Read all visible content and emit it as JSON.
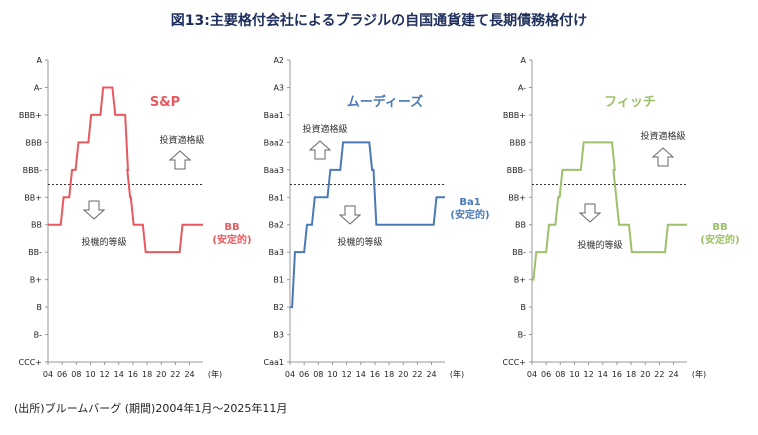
{
  "title": "図13:主要格付会社によるブラジルの自国通貨建て長期債務格付け",
  "source": "(出所)ブルームバーグ (期間)2004年1月～2025年11月",
  "x_unit": "(年)",
  "chart_data": [
    {
      "type": "line",
      "agency": "S&P",
      "color": "#e8595f",
      "y_categories": [
        "CCC+",
        "B-",
        "B",
        "B+",
        "BB-",
        "BB",
        "BB+",
        "BBB-",
        "BBB",
        "BBB+",
        "A-",
        "A"
      ],
      "x_ticks": [
        "04",
        "06",
        "08",
        "10",
        "12",
        "14",
        "16",
        "18",
        "20",
        "22",
        "24"
      ],
      "xlim": [
        2004,
        2025.9
      ],
      "investment_grade_threshold": "BBB-",
      "above_label": "投資適格級",
      "below_label": "投機的等級",
      "current_label": "BB",
      "current_sub": "(安定的)",
      "steps": [
        [
          2004,
          "BB"
        ],
        [
          2006.2,
          "BB+"
        ],
        [
          2007.4,
          "BBB-"
        ],
        [
          2008.3,
          "BBB"
        ],
        [
          2010.1,
          "BBB+"
        ],
        [
          2011.8,
          "A-"
        ],
        [
          2013.5,
          "BBB+"
        ],
        [
          2015.3,
          "BBB-"
        ],
        [
          2015.6,
          "BB+"
        ],
        [
          2016.1,
          "BB"
        ],
        [
          2017.8,
          "BB-"
        ],
        [
          2023.0,
          "BB"
        ],
        [
          2025.9,
          "BB"
        ]
      ]
    },
    {
      "type": "line",
      "agency": "ムーディーズ",
      "color": "#4a7ab5",
      "y_categories": [
        "Caa1",
        "B3",
        "B2",
        "B1",
        "Ba3",
        "Ba2",
        "Ba1",
        "Baa3",
        "Baa2",
        "Baa1",
        "A3",
        "A2"
      ],
      "x_ticks": [
        "04",
        "06",
        "08",
        "10",
        "12",
        "14",
        "16",
        "18",
        "20",
        "22",
        "24"
      ],
      "xlim": [
        2004,
        2025.9
      ],
      "investment_grade_threshold": "Baa3",
      "above_label": "投資適格級",
      "below_label": "投機的等級",
      "current_label": "Ba1",
      "current_sub": "(安定的)",
      "steps": [
        [
          2004,
          "B2"
        ],
        [
          2004.7,
          "Ba3"
        ],
        [
          2006.4,
          "Ba2"
        ],
        [
          2007.5,
          "Ba1"
        ],
        [
          2009.7,
          "Baa3"
        ],
        [
          2011.5,
          "Baa2"
        ],
        [
          2015.6,
          "Baa3"
        ],
        [
          2016.2,
          "Ba2"
        ],
        [
          2024.7,
          "Ba1"
        ],
        [
          2025.9,
          "Ba1"
        ]
      ]
    },
    {
      "type": "line",
      "agency": "フィッチ",
      "color": "#9dc06a",
      "y_categories": [
        "CCC+",
        "B-",
        "B",
        "B+",
        "BB-",
        "BB",
        "BB+",
        "BBB-",
        "BBB",
        "BBB+",
        "A-",
        "A"
      ],
      "x_ticks": [
        "04",
        "06",
        "08",
        "10",
        "12",
        "14",
        "16",
        "18",
        "20",
        "22",
        "24"
      ],
      "xlim": [
        2004,
        2025.9
      ],
      "investment_grade_threshold": "BBB-",
      "above_label": "投資適格級",
      "below_label": "投機的等級",
      "current_label": "BB",
      "current_sub": "(安定的)",
      "steps": [
        [
          2004,
          "B+"
        ],
        [
          2004.6,
          "BB-"
        ],
        [
          2006.4,
          "BB"
        ],
        [
          2007.7,
          "BB+"
        ],
        [
          2008.3,
          "BBB-"
        ],
        [
          2011.3,
          "BBB"
        ],
        [
          2015.7,
          "BBB-"
        ],
        [
          2015.9,
          "BB+"
        ],
        [
          2016.3,
          "BB"
        ],
        [
          2018.1,
          "BB-"
        ],
        [
          2023.2,
          "BB"
        ],
        [
          2025.9,
          "BB"
        ]
      ]
    }
  ]
}
